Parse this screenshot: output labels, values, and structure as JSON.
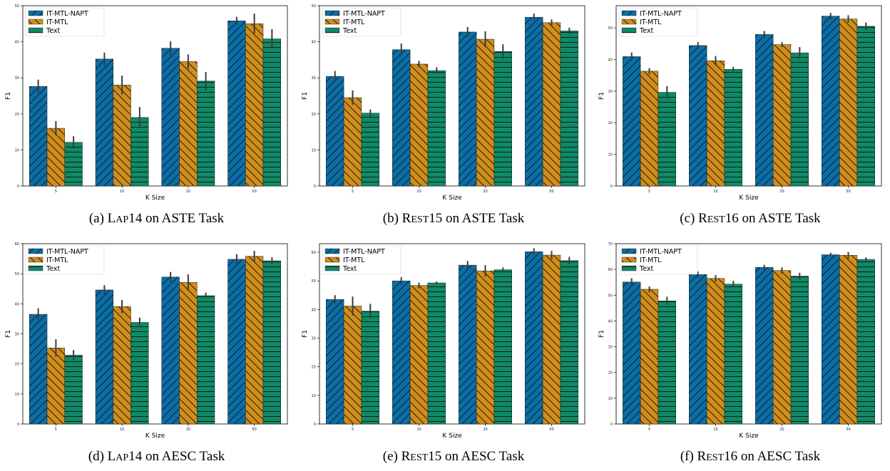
{
  "legend": [
    "IT-MTL-NAPT",
    "IT-MTL",
    "Text"
  ],
  "colors": [
    "#0b6ea6",
    "#d18e1c",
    "#0f8a68"
  ],
  "chart_data": [
    {
      "type": "bar",
      "panel": "a",
      "caption_prefix": "(a) ",
      "caption_dataset": "LAP14",
      "caption_suffix": " on ASTE Task",
      "xlabel": "K Size",
      "ylabel": "F1",
      "categories": [
        "5",
        "10",
        "20",
        "50"
      ],
      "ylim": [
        0,
        50
      ],
      "yticks": [
        0,
        10,
        20,
        30,
        40,
        50
      ],
      "series": [
        {
          "name": "IT-MTL-NAPT",
          "values": [
            27.6,
            35.2,
            38.2,
            45.8
          ],
          "err": [
            1.9,
            1.8,
            1.9,
            1.1
          ]
        },
        {
          "name": "IT-MTL",
          "values": [
            16.0,
            28.0,
            34.5,
            45.0
          ],
          "err": [
            2.0,
            2.6,
            2.0,
            2.8
          ]
        },
        {
          "name": "Text",
          "values": [
            12.1,
            19.0,
            29.1,
            40.8
          ],
          "err": [
            1.7,
            2.9,
            2.5,
            2.7
          ]
        }
      ]
    },
    {
      "type": "bar",
      "panel": "b",
      "caption_prefix": "(b) ",
      "caption_dataset": "REST15",
      "caption_suffix": " on ASTE Task",
      "xlabel": "K Size",
      "ylabel": "F1",
      "categories": [
        "5",
        "10",
        "20",
        "50"
      ],
      "ylim": [
        0,
        50
      ],
      "yticks": [
        0,
        10,
        20,
        30,
        40,
        50
      ],
      "series": [
        {
          "name": "IT-MTL-NAPT",
          "values": [
            30.4,
            37.8,
            42.7,
            46.8
          ],
          "err": [
            1.5,
            1.7,
            1.4,
            1.0
          ]
        },
        {
          "name": "IT-MTL",
          "values": [
            24.5,
            33.8,
            40.7,
            45.3
          ],
          "err": [
            2.0,
            0.9,
            2.2,
            0.9
          ]
        },
        {
          "name": "Text",
          "values": [
            20.2,
            32.0,
            37.3,
            43.0
          ],
          "err": [
            1.0,
            0.9,
            2.0,
            0.9
          ]
        }
      ]
    },
    {
      "type": "bar",
      "panel": "c",
      "caption_prefix": "(c) ",
      "caption_dataset": "REST16",
      "caption_suffix": " on ASTE Task",
      "xlabel": "K Size",
      "ylabel": "F1",
      "categories": [
        "5",
        "10",
        "20",
        "50"
      ],
      "ylim": [
        0,
        57
      ],
      "yticks": [
        0,
        10,
        20,
        30,
        40,
        50
      ],
      "series": [
        {
          "name": "IT-MTL-NAPT",
          "values": [
            40.9,
            44.4,
            47.9,
            53.7
          ],
          "err": [
            1.3,
            1.1,
            1.1,
            1.0
          ]
        },
        {
          "name": "IT-MTL",
          "values": [
            36.3,
            39.6,
            44.7,
            52.8
          ],
          "err": [
            1.0,
            1.5,
            0.8,
            1.2
          ]
        },
        {
          "name": "Text",
          "values": [
            29.6,
            36.9,
            42.1,
            50.5
          ],
          "err": [
            2.0,
            0.8,
            1.8,
            1.2
          ]
        }
      ]
    },
    {
      "type": "bar",
      "panel": "d",
      "caption_prefix": "(d) ",
      "caption_dataset": "LAP14",
      "caption_suffix": " on AESC Task",
      "xlabel": "K Size",
      "ylabel": "F1",
      "categories": [
        "5",
        "10",
        "20",
        "50"
      ],
      "ylim": [
        0,
        60
      ],
      "yticks": [
        0,
        10,
        20,
        30,
        40,
        50,
        60
      ],
      "series": [
        {
          "name": "IT-MTL-NAPT",
          "values": [
            36.5,
            44.6,
            48.9,
            54.8
          ],
          "err": [
            2.0,
            1.6,
            1.7,
            1.7
          ]
        },
        {
          "name": "IT-MTL",
          "values": [
            25.3,
            39.1,
            47.1,
            55.8
          ],
          "err": [
            2.9,
            2.2,
            2.7,
            1.8
          ]
        },
        {
          "name": "Text",
          "values": [
            22.9,
            33.8,
            42.7,
            54.3
          ],
          "err": [
            1.7,
            1.6,
            1.0,
            1.2
          ]
        }
      ]
    },
    {
      "type": "bar",
      "panel": "e",
      "caption_prefix": "(e) ",
      "caption_dataset": "REST15",
      "caption_suffix": " on AESC Task",
      "xlabel": "K Size",
      "ylabel": "F1",
      "categories": [
        "5",
        "10",
        "20",
        "50"
      ],
      "ylim": [
        0,
        63
      ],
      "yticks": [
        0,
        10,
        20,
        30,
        40,
        50,
        60
      ],
      "series": [
        {
          "name": "IT-MTL-NAPT",
          "values": [
            43.5,
            50.0,
            55.5,
            60.2
          ],
          "err": [
            1.5,
            1.3,
            1.5,
            1.2
          ]
        },
        {
          "name": "IT-MTL",
          "values": [
            41.2,
            48.4,
            53.5,
            59.0
          ],
          "err": [
            3.3,
            1.0,
            2.0,
            1.5
          ]
        },
        {
          "name": "Text",
          "values": [
            39.4,
            49.3,
            53.9,
            57.1
          ],
          "err": [
            2.6,
            0.5,
            0.8,
            1.3
          ]
        }
      ]
    },
    {
      "type": "bar",
      "panel": "f",
      "caption_prefix": "(f) ",
      "caption_dataset": "REST16",
      "caption_suffix": " on AESC Task",
      "xlabel": "K Size",
      "ylabel": "F1",
      "categories": [
        "5",
        "10",
        "20",
        "50"
      ],
      "ylim": [
        0,
        70
      ],
      "yticks": [
        0,
        10,
        20,
        30,
        40,
        50,
        60,
        70
      ],
      "series": [
        {
          "name": "IT-MTL-NAPT",
          "values": [
            55.1,
            58.0,
            60.8,
            65.7
          ],
          "err": [
            1.5,
            1.2,
            1.0,
            0.8
          ]
        },
        {
          "name": "IT-MTL",
          "values": [
            52.3,
            56.5,
            59.6,
            65.5
          ],
          "err": [
            1.1,
            1.3,
            1.2,
            1.3
          ]
        },
        {
          "name": "Text",
          "values": [
            47.8,
            54.3,
            57.4,
            63.9
          ],
          "err": [
            1.6,
            1.3,
            1.3,
            0.8
          ]
        }
      ]
    }
  ]
}
